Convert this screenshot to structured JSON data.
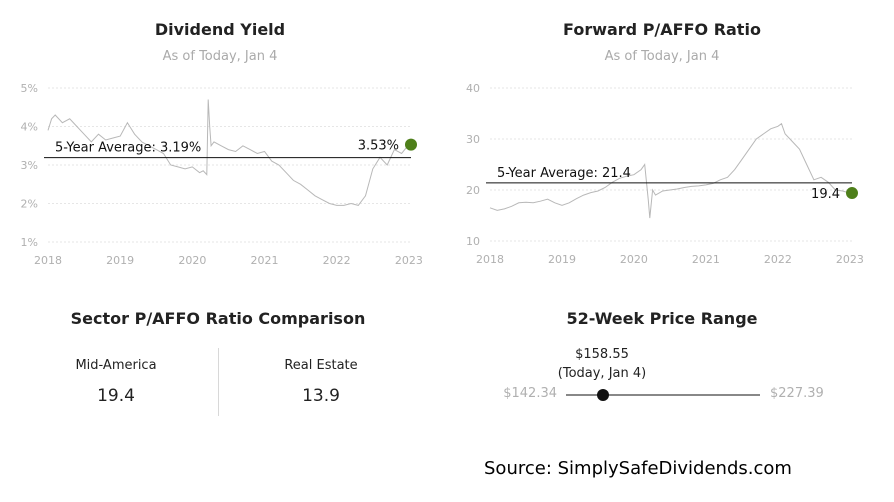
{
  "chart_data": [
    {
      "type": "line",
      "title": "Dividend Yield",
      "subtitle": "As of Today, Jan 4",
      "xlabel": "",
      "ylabel": "",
      "x_ticks": [
        "2018",
        "2019",
        "2020",
        "2021",
        "2022",
        "2023"
      ],
      "y_ticks": [
        "5%",
        "4%",
        "3%",
        "2%",
        "1%"
      ],
      "xlim": [
        2018.0,
        2023.03
      ],
      "ylim": [
        1,
        5
      ],
      "grid": true,
      "series": [
        {
          "x": [
            2018.0,
            2018.05,
            2018.1,
            2018.2,
            2018.3,
            2018.4,
            2018.5,
            2018.6,
            2018.7,
            2018.8,
            2018.9,
            2019.0,
            2019.1,
            2019.2,
            2019.3,
            2019.4,
            2019.5,
            2019.6,
            2019.7,
            2019.8,
            2019.9,
            2020.0,
            2020.1,
            2020.15,
            2020.2,
            2020.22,
            2020.24,
            2020.26,
            2020.3,
            2020.4,
            2020.5,
            2020.6,
            2020.7,
            2020.8,
            2020.9,
            2021.0,
            2021.1,
            2021.2,
            2021.3,
            2021.4,
            2021.5,
            2021.6,
            2021.7,
            2021.8,
            2021.9,
            2022.0,
            2022.1,
            2022.2,
            2022.3,
            2022.4,
            2022.5,
            2022.6,
            2022.7,
            2022.8,
            2022.9,
            2023.0
          ],
          "y": [
            3.9,
            4.2,
            4.3,
            4.1,
            4.2,
            4.0,
            3.8,
            3.6,
            3.8,
            3.65,
            3.7,
            3.75,
            4.1,
            3.8,
            3.6,
            3.5,
            3.4,
            3.3,
            3.0,
            2.95,
            2.9,
            2.95,
            2.8,
            2.85,
            2.75,
            4.7,
            4.0,
            3.5,
            3.6,
            3.5,
            3.4,
            3.35,
            3.5,
            3.4,
            3.3,
            3.35,
            3.1,
            3.0,
            2.8,
            2.6,
            2.5,
            2.35,
            2.2,
            2.1,
            2.0,
            1.95,
            1.95,
            2.0,
            1.95,
            2.2,
            2.9,
            3.2,
            3.0,
            3.4,
            3.3,
            3.53
          ]
        }
      ],
      "reference_line": {
        "label": "5-Year Average: 3.19%",
        "value": 3.19
      },
      "current": {
        "label": "3.53%",
        "value": 3.53
      },
      "colors": {
        "line": "#b8b8b8",
        "marker": "#4e7f1a",
        "reference": "#111111",
        "grid": "#e6e6e6"
      }
    },
    {
      "type": "line",
      "title": "Forward P/AFFO Ratio",
      "subtitle": "As of Today, Jan 4",
      "xlabel": "",
      "ylabel": "",
      "x_ticks": [
        "2018",
        "2019",
        "2020",
        "2021",
        "2022",
        "2023"
      ],
      "y_ticks": [
        "40",
        "30",
        "20",
        "10"
      ],
      "xlim": [
        2018.0,
        2023.03
      ],
      "ylim": [
        10,
        40
      ],
      "grid": true,
      "series": [
        {
          "x": [
            2018.0,
            2018.1,
            2018.2,
            2018.3,
            2018.4,
            2018.5,
            2018.6,
            2018.7,
            2018.8,
            2018.9,
            2019.0,
            2019.1,
            2019.2,
            2019.3,
            2019.4,
            2019.5,
            2019.6,
            2019.7,
            2019.8,
            2019.9,
            2020.0,
            2020.1,
            2020.15,
            2020.2,
            2020.22,
            2020.26,
            2020.3,
            2020.4,
            2020.5,
            2020.6,
            2020.7,
            2020.8,
            2020.9,
            2021.0,
            2021.1,
            2021.2,
            2021.3,
            2021.4,
            2021.5,
            2021.6,
            2021.7,
            2021.8,
            2021.9,
            2022.0,
            2022.05,
            2022.1,
            2022.2,
            2022.3,
            2022.4,
            2022.5,
            2022.6,
            2022.7,
            2022.8,
            2022.9,
            2023.0
          ],
          "y": [
            16.5,
            16.0,
            16.3,
            16.8,
            17.5,
            17.6,
            17.5,
            17.8,
            18.2,
            17.5,
            17.0,
            17.5,
            18.3,
            19.0,
            19.5,
            19.8,
            20.5,
            21.5,
            22.3,
            22.7,
            23.0,
            24.0,
            25.0,
            18.0,
            14.5,
            20.0,
            19.0,
            19.8,
            20.0,
            20.2,
            20.5,
            20.7,
            20.8,
            21.0,
            21.3,
            22.0,
            22.5,
            24.0,
            26.0,
            28.0,
            30.0,
            31.0,
            32.0,
            32.5,
            33.0,
            31.0,
            29.5,
            28.0,
            25.0,
            22.0,
            22.5,
            21.5,
            20.0,
            19.8,
            19.4
          ]
        }
      ],
      "reference_line": {
        "label": "5-Year Average: 21.4",
        "value": 21.4
      },
      "current": {
        "label": "19.4",
        "value": 19.4
      },
      "colors": {
        "line": "#b8b8b8",
        "marker": "#4e7f1a",
        "reference": "#111111",
        "grid": "#e6e6e6"
      }
    }
  ],
  "sector_comparison": {
    "title": "Sector P/AFFO Ratio Comparison",
    "items": [
      {
        "label": "Mid-America",
        "value": "19.4"
      },
      {
        "label": "Real Estate",
        "value": "13.9"
      }
    ]
  },
  "price_range": {
    "title": "52-Week Price Range",
    "low_label": "$142.34",
    "high_label": "$227.39",
    "current_label": "$158.55",
    "current_sublabel": "(Today, Jan 4)",
    "low": 142.34,
    "high": 227.39,
    "current": 158.55
  },
  "source": "Source: SimplySafeDividends.com"
}
